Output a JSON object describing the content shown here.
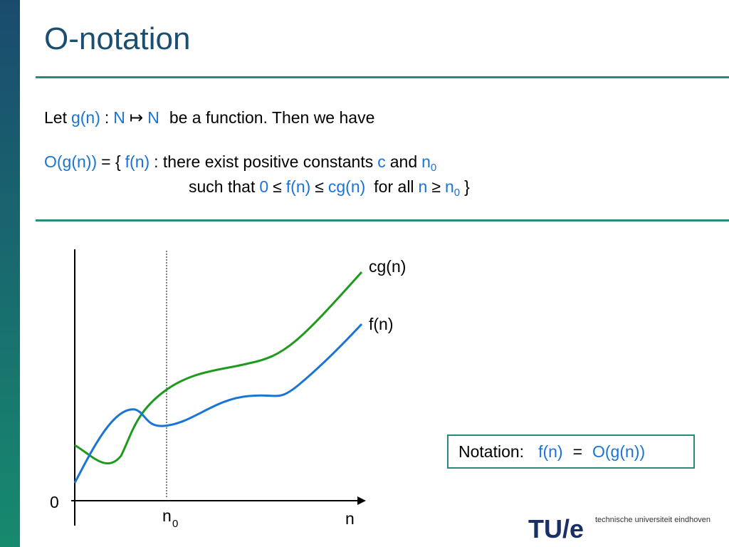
{
  "title": "O-notation",
  "intro": [
    "Let",
    "g(n)",
    ":",
    "N",
    "↦",
    "N",
    "be a function. Then we have"
  ],
  "definition": {
    "line1": [
      "O(g(n))",
      "= {",
      "f(n)",
      ": there exist positive constants",
      "c",
      "and",
      "n",
      "0"
    ],
    "line2": [
      "such that",
      "0",
      "≤",
      "f(n)",
      "≤",
      "cg(n)",
      "for all",
      "n",
      "≥",
      "n",
      "0",
      "}"
    ]
  },
  "graph": {
    "origin": "0",
    "x_axis": "n",
    "threshold": "n",
    "threshold_sub": "0",
    "upper_curve": "cg(n)",
    "lower_curve": "f(n)"
  },
  "notation_box": {
    "label": "Notation:",
    "lhs": "f(n)",
    "eq": "=",
    "rhs": "O(g(n))"
  },
  "logo": {
    "mark": "TU/e",
    "text": "technische universiteit eindhoven"
  }
}
